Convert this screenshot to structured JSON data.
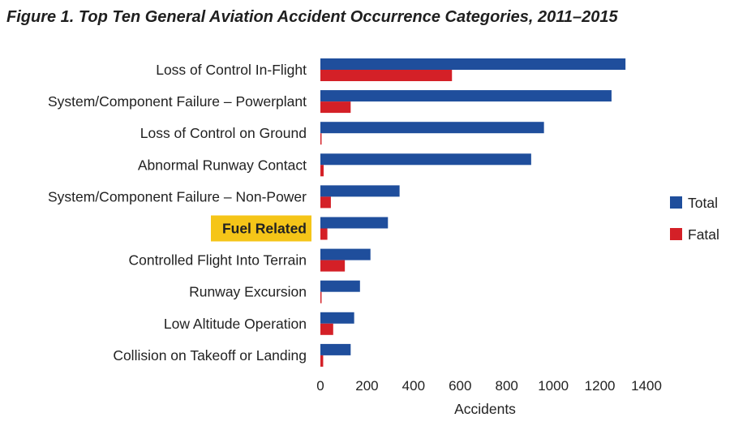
{
  "chart_data": {
    "type": "bar",
    "orientation": "horizontal",
    "title": "Figure 1. Top Ten General Aviation Accident Occurrence Categories, 2011–2015",
    "xlabel": "Accidents",
    "ylabel": "",
    "xlim": [
      0,
      1400
    ],
    "xticks": [
      0,
      200,
      400,
      600,
      800,
      1000,
      1200,
      1400
    ],
    "grid": false,
    "legend_position": "right",
    "highlighted_category": "Fuel Related",
    "highlight_color": "#f5c518",
    "categories": [
      "Loss of Control In-Flight",
      "System/Component Failure – Powerplant",
      "Loss of Control on Ground",
      "Abnormal Runway Contact",
      "System/Component Failure – Non-Power",
      "Fuel Related",
      "Controlled Flight Into Terrain",
      "Runway Excursion",
      "Low Altitude Operation",
      "Collision on Takeoff or Landing"
    ],
    "series": [
      {
        "name": "Total",
        "color": "#1f4e9c",
        "values": [
          1310,
          1250,
          960,
          905,
          340,
          290,
          215,
          170,
          145,
          130
        ]
      },
      {
        "name": "Fatal",
        "color": "#d42027",
        "values": [
          565,
          130,
          5,
          14,
          45,
          30,
          105,
          5,
          55,
          12
        ]
      }
    ]
  }
}
